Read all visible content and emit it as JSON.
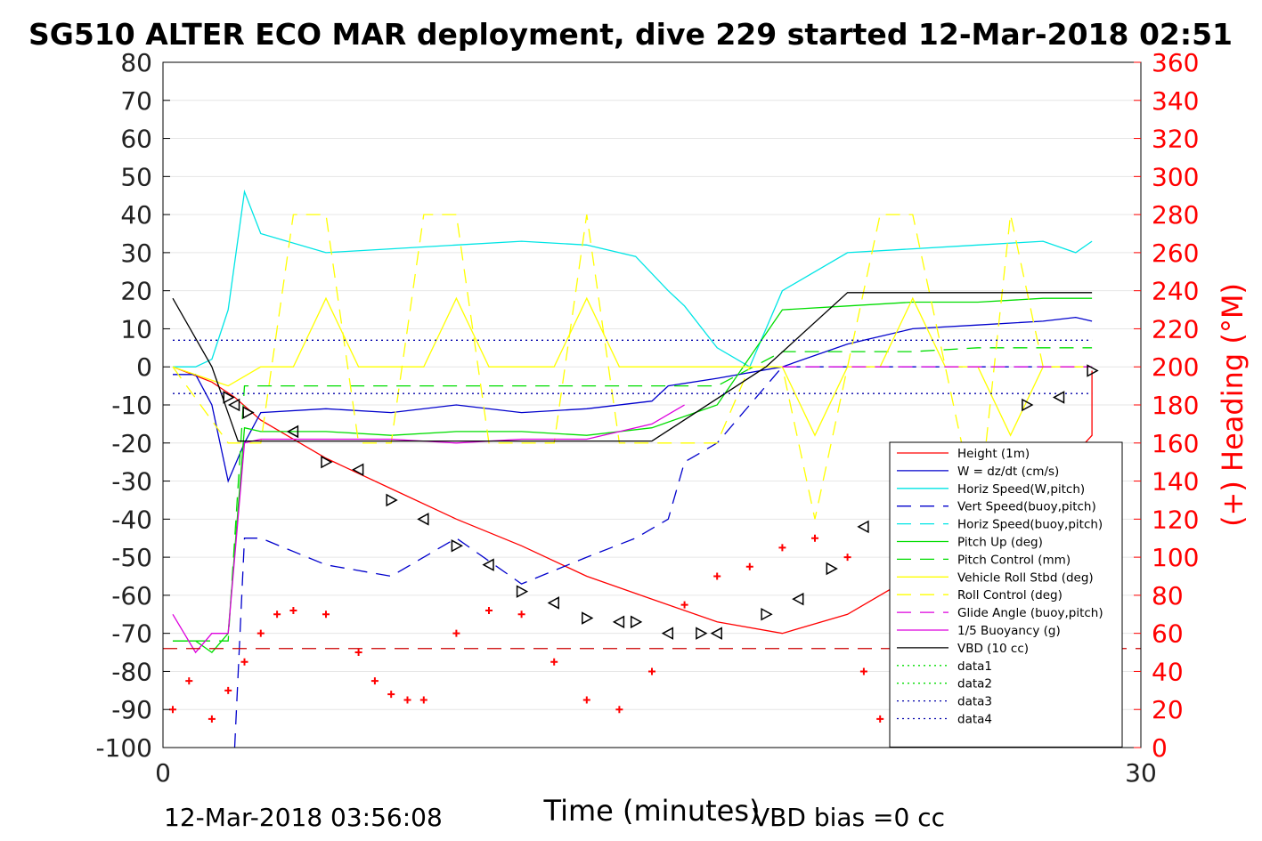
{
  "chart_data": {
    "type": "line",
    "title": "SG510 ALTER ECO MAR deployment, dive 229 started 12-Mar-2018 02:51",
    "xlabel": "Time (minutes)",
    "ylabel_right": "(+) Heading (°M)",
    "xlim": [
      0,
      30
    ],
    "ylim": [
      -100,
      80
    ],
    "ylim_right": [
      0,
      360
    ],
    "x_ticks": [
      "0",
      "30"
    ],
    "y_ticks": [
      "80",
      "70",
      "60",
      "50",
      "40",
      "30",
      "20",
      "10",
      "0",
      "-10",
      "-20",
      "-30",
      "-40",
      "-50",
      "-60",
      "-70",
      "-80",
      "-90",
      "-100"
    ],
    "y_ticks_right": [
      "360",
      "340",
      "320",
      "300",
      "280",
      "260",
      "240",
      "220",
      "200",
      "180",
      "160",
      "140",
      "120",
      "100",
      "80",
      "60",
      "40",
      "20",
      "0"
    ],
    "grid": "horizontal",
    "legend_position": "lower-right",
    "footer_left": "12-Mar-2018 03:56:08",
    "footer_right": "VBD bias =0 cc",
    "colors": {
      "height": "#ff0000",
      "w": "#0000cc",
      "horiz_speed": "#00e5e5",
      "pitch": "#00dd00",
      "roll": "#ffff00",
      "glide": "#dd00dd",
      "vbd": "#000000",
      "heading": "#ff0000"
    },
    "series": [
      {
        "name": "Height (1m)",
        "style": "solid",
        "color": "#ff0000",
        "x": [
          0.3,
          1.5,
          2.2,
          3.0,
          5.0,
          7.0,
          9.0,
          11.0,
          13.0,
          15.0,
          17.0,
          19.0,
          21.0,
          23.0,
          25.0,
          27.0,
          28.5,
          28.5
        ],
        "y": [
          0,
          -4,
          -8,
          -14,
          -24,
          -32,
          -40,
          -47,
          -55,
          -61,
          -67,
          -70,
          -65,
          -55,
          -44,
          -32,
          -18,
          -1
        ]
      },
      {
        "name": "W = dz/dt (cm/s)",
        "style": "solid",
        "color": "#0000cc",
        "x": [
          0.3,
          1.0,
          1.5,
          2.0,
          2.5,
          3.0,
          5.0,
          7.0,
          9.0,
          11.0,
          13.0,
          15.0,
          15.5,
          17.0,
          19.0,
          21.0,
          23.0,
          25.0,
          27.0,
          28.0,
          28.5
        ],
        "y": [
          -2,
          -2,
          -10,
          -30,
          -20,
          -12,
          -11,
          -12,
          -10,
          -12,
          -11,
          -9,
          -5,
          -3,
          0,
          6,
          10,
          11,
          12,
          13,
          12
        ]
      },
      {
        "name": "Horiz Speed(W,pitch)",
        "style": "solid",
        "color": "#00e5e5",
        "x": [
          0.3,
          1.0,
          1.5,
          2.0,
          2.5,
          3.0,
          5.0,
          7.0,
          9.0,
          11.0,
          13.0,
          14.5,
          15.5,
          16.0,
          17.0,
          18.0,
          19.0,
          21.0,
          23.0,
          25.0,
          27.0,
          28.0,
          28.5
        ],
        "y": [
          0,
          0,
          2,
          15,
          46,
          35,
          30,
          31,
          32,
          33,
          32,
          29,
          20,
          16,
          5,
          0,
          20,
          30,
          31,
          32,
          33,
          30,
          33
        ]
      },
      {
        "name": "Vert Speed(buoy,pitch)",
        "style": "dashed",
        "color": "#0000cc",
        "x": [
          2.2,
          2.5,
          3.0,
          5.0,
          7.0,
          9.0,
          11.0,
          13.0,
          14.5,
          15.5,
          16.0,
          17.0,
          19.0,
          23.0,
          28.5
        ],
        "y": [
          -100,
          -45,
          -45,
          -52,
          -55,
          -45,
          -57,
          -50,
          -45,
          -40,
          -25,
          -20,
          0,
          0,
          0
        ]
      },
      {
        "name": "Horiz Speed(buoy,pitch)",
        "style": "dashed",
        "color": "#00e5e5",
        "x": [
          19.0,
          21.0,
          28.5
        ],
        "y": [
          0,
          0,
          0
        ]
      },
      {
        "name": "Pitch Up (deg)",
        "style": "solid",
        "color": "#00dd00",
        "x": [
          0.3,
          1.0,
          1.5,
          2.0,
          2.5,
          3.0,
          5.0,
          7.0,
          9.0,
          11.0,
          13.0,
          15.0,
          17.0,
          19.0,
          21.0,
          23.0,
          25.0,
          27.0,
          28.5
        ],
        "y": [
          -72,
          -72,
          -75,
          -70,
          -16,
          -17,
          -17,
          -18,
          -17,
          -17,
          -18,
          -16,
          -10,
          15,
          16,
          17,
          17,
          18,
          18
        ]
      },
      {
        "name": "Pitch Control (mm)",
        "style": "dashed",
        "color": "#00dd00",
        "x": [
          0.3,
          1.0,
          1.5,
          2.0,
          2.5,
          3.0,
          5.0,
          7.0,
          9.0,
          11.0,
          13.0,
          15.0,
          17.0,
          19.0,
          21.0,
          23.0,
          25.0,
          27.0,
          28.5
        ],
        "y": [
          -72,
          -72,
          -72,
          -72,
          -5,
          -5,
          -5,
          -5,
          -5,
          -5,
          -5,
          -5,
          -5,
          4,
          4,
          4,
          5,
          5,
          5
        ]
      },
      {
        "name": "Vehicle Roll Stbd (deg)",
        "style": "solid",
        "color": "#ffff00",
        "x": [
          0.3,
          2.0,
          3.0,
          4.0,
          5.0,
          6.0,
          7.0,
          8.0,
          9.0,
          10.0,
          11.0,
          12.0,
          13.0,
          14.0,
          15.0,
          16.0,
          17.0,
          18.0,
          19.0,
          20.0,
          21.0,
          22.0,
          23.0,
          24.0,
          25.0,
          26.0,
          27.0,
          28.5
        ],
        "y": [
          0,
          -5,
          0,
          0,
          18,
          0,
          0,
          0,
          18,
          0,
          0,
          0,
          18,
          0,
          0,
          0,
          0,
          0,
          0,
          -18,
          0,
          0,
          18,
          0,
          0,
          -18,
          0,
          0
        ]
      },
      {
        "name": "Roll Control (deg)",
        "style": "dashed",
        "color": "#ffff00",
        "x": [
          0.3,
          2.0,
          3.0,
          4.0,
          5.0,
          6.0,
          7.0,
          8.0,
          9.0,
          10.0,
          11.0,
          12.0,
          13.0,
          14.0,
          15.0,
          16.0,
          17.0,
          18.0,
          19.0,
          20.0,
          21.0,
          22.0,
          23.0,
          24.0,
          25.0,
          26.0,
          27.0,
          28.5
        ],
        "y": [
          0,
          -20,
          -20,
          40,
          40,
          -20,
          -20,
          40,
          40,
          -20,
          -20,
          -20,
          40,
          -20,
          -20,
          -20,
          -20,
          0,
          0,
          -40,
          0,
          40,
          40,
          0,
          -40,
          40,
          0,
          0
        ]
      },
      {
        "name": "Glide Angle (buoy,pitch)",
        "style": "dashed",
        "color": "#dd00dd",
        "x": [
          19.0,
          28.5
        ],
        "y": [
          0,
          0
        ]
      },
      {
        "name": "1/5 Buoyancy (g)",
        "style": "solid",
        "color": "#dd00dd",
        "x": [
          0.3,
          1.0,
          1.5,
          2.0,
          2.5,
          3.0,
          5.0,
          7.0,
          9.0,
          11.0,
          13.0,
          15.0,
          16.0
        ],
        "y": [
          -65,
          -75,
          -70,
          -70,
          -20,
          -19,
          -19,
          -19,
          -20,
          -19,
          -19,
          -15,
          -10
        ]
      },
      {
        "name": "VBD (10 cc)",
        "style": "solid",
        "color": "#000000",
        "x": [
          0.3,
          1.5,
          2.3,
          15.0,
          18.5,
          21.0,
          24.0,
          28.5
        ],
        "y": [
          18,
          0,
          -19.5,
          -19.5,
          0,
          19.5,
          19.5,
          19.5
        ]
      },
      {
        "name": "data1",
        "style": "dotted",
        "color": "#00dd00",
        "x": [],
        "y": []
      },
      {
        "name": "data2",
        "style": "dotted",
        "color": "#00dd00",
        "x": [],
        "y": []
      },
      {
        "name": "data3",
        "style": "dotted",
        "color": "#0000aa",
        "x": [
          0.3,
          28.5
        ],
        "y": [
          7,
          7
        ]
      },
      {
        "name": "data4",
        "style": "dotted",
        "color": "#0000aa",
        "x": [
          0.3,
          28.5
        ],
        "y": [
          -7,
          -7
        ]
      }
    ],
    "heading_right_axis": {
      "marker": "plus",
      "color": "#ff0000",
      "x": [
        0.3,
        0.8,
        1.5,
        2.0,
        2.5,
        3.0,
        3.5,
        4.0,
        5.0,
        6.0,
        6.5,
        7.0,
        7.5,
        8.0,
        9.0,
        10.0,
        11.0,
        12.0,
        13.0,
        14.0,
        15.0,
        16.0,
        17.0,
        18.0,
        19.0,
        20.0,
        21.0,
        21.5,
        22.0,
        22.5,
        23.0,
        23.5,
        24.0,
        25.0,
        26.0,
        27.0,
        27.5,
        28.0,
        28.5
      ],
      "y": [
        20,
        35,
        15,
        30,
        45,
        60,
        70,
        72,
        70,
        50,
        35,
        28,
        25,
        25,
        60,
        72,
        70,
        45,
        25,
        20,
        40,
        75,
        90,
        95,
        105,
        110,
        100,
        40,
        15,
        2,
        15,
        40,
        60,
        75,
        60,
        30,
        5,
        10,
        40
      ]
    },
    "heading_reference_line": {
      "style": "dashed",
      "color": "#cc0000",
      "y": 52
    },
    "markers_triangles": {
      "color": "#000000",
      "x": [
        2.0,
        2.2,
        2.6,
        4.0,
        5.0,
        6.0,
        7.0,
        8.0,
        9.0,
        10.0,
        11.0,
        12.0,
        13.0,
        14.0,
        14.5,
        15.5,
        16.5,
        17.0,
        18.5,
        19.5,
        20.5,
        21.5,
        22.5,
        23.5,
        24.5,
        25.5,
        26.5,
        27.5,
        28.5
      ],
      "y": [
        -8,
        -10,
        -12,
        -17,
        -25,
        -27,
        -35,
        -40,
        -47,
        -52,
        -59,
        -62,
        -66,
        -67,
        -67,
        -70,
        -70,
        -70,
        -65,
        -61,
        -53,
        -42,
        -34,
        -31,
        -22,
        -22,
        -10,
        -8,
        -1
      ]
    }
  }
}
